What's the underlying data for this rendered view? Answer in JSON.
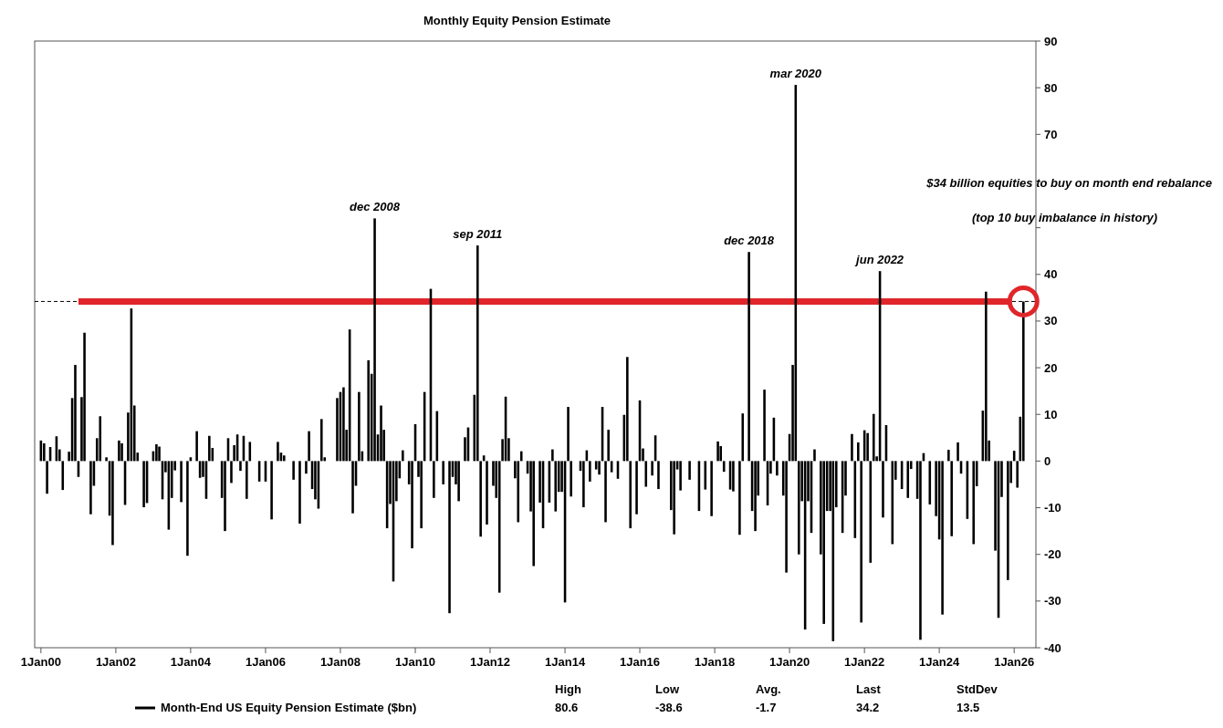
{
  "chart_data": {
    "type": "bar",
    "title": "Monthly Equity Pension Estimate",
    "x": [
      "2000-01",
      "2000-02",
      "2000-03",
      "2000-04",
      "2000-06",
      "2000-07",
      "2000-08",
      "2000-10",
      "2000-11",
      "2000-12",
      "2001-01",
      "2001-02",
      "2001-03",
      "2001-05",
      "2001-06",
      "2001-07",
      "2001-08",
      "2001-10",
      "2001-11",
      "2001-12",
      "2002-02",
      "2002-03",
      "2002-04",
      "2002-05",
      "2002-06",
      "2002-07",
      "2002-08",
      "2002-10",
      "2002-11",
      "2003-01",
      "2003-02",
      "2003-03",
      "2003-04",
      "2003-05",
      "2003-06",
      "2003-07",
      "2003-08",
      "2003-10",
      "2003-12",
      "2004-01",
      "2004-03",
      "2004-04",
      "2004-05",
      "2004-06",
      "2004-07",
      "2004-08",
      "2004-11",
      "2004-12",
      "2005-01",
      "2005-02",
      "2005-03",
      "2005-04",
      "2005-05",
      "2005-06",
      "2005-07",
      "2005-08",
      "2005-11",
      "2006-01",
      "2006-03",
      "2006-05",
      "2006-06",
      "2006-07",
      "2006-10",
      "2006-12",
      "2007-02",
      "2007-03",
      "2007-04",
      "2007-05",
      "2007-06",
      "2007-07",
      "2007-08",
      "2007-12",
      "2008-01",
      "2008-02",
      "2008-03",
      "2008-04",
      "2008-05",
      "2008-06",
      "2008-07",
      "2008-08",
      "2008-10",
      "2008-11",
      "2008-12",
      "2009-01",
      "2009-02",
      "2009-03",
      "2009-04",
      "2009-05",
      "2009-06",
      "2009-07",
      "2009-08",
      "2009-09",
      "2009-11",
      "2009-12",
      "2010-01",
      "2010-02",
      "2010-03",
      "2010-04",
      "2010-06",
      "2010-07",
      "2010-08",
      "2010-10",
      "2010-12",
      "2011-01",
      "2011-02",
      "2011-03",
      "2011-05",
      "2011-06",
      "2011-08",
      "2011-09",
      "2011-10",
      "2011-11",
      "2011-12",
      "2012-02",
      "2012-03",
      "2012-04",
      "2012-05",
      "2012-06",
      "2012-07",
      "2012-09",
      "2012-10",
      "2012-11",
      "2013-01",
      "2013-02",
      "2013-03",
      "2013-05",
      "2013-06",
      "2013-08",
      "2013-09",
      "2013-10",
      "2013-11",
      "2013-12",
      "2014-01",
      "2014-02",
      "2014-03",
      "2014-06",
      "2014-07",
      "2014-08",
      "2014-09",
      "2014-11",
      "2014-12",
      "2015-01",
      "2015-02",
      "2015-03",
      "2015-04",
      "2015-06",
      "2015-08",
      "2015-09",
      "2015-10",
      "2015-12",
      "2016-01",
      "2016-02",
      "2016-03",
      "2016-05",
      "2016-06",
      "2016-07",
      "2016-11",
      "2016-12",
      "2017-01",
      "2017-02",
      "2017-05",
      "2017-08",
      "2017-10",
      "2017-12",
      "2018-02",
      "2018-03",
      "2018-04",
      "2018-06",
      "2018-07",
      "2018-09",
      "2018-10",
      "2018-12",
      "2019-01",
      "2019-02",
      "2019-03",
      "2019-05",
      "2019-06",
      "2019-07",
      "2019-08",
      "2019-09",
      "2019-11",
      "2019-12",
      "2020-01",
      "2020-02",
      "2020-03",
      "2020-04",
      "2020-05",
      "2020-06",
      "2020-07",
      "2020-08",
      "2020-09",
      "2020-11",
      "2020-12",
      "2021-01",
      "2021-02",
      "2021-03",
      "2021-04",
      "2021-06",
      "2021-07",
      "2021-09",
      "2021-10",
      "2021-11",
      "2021-12",
      "2022-01",
      "2022-02",
      "2022-03",
      "2022-04",
      "2022-05",
      "2022-06",
      "2022-07",
      "2022-08",
      "2022-10",
      "2022-11",
      "2023-01",
      "2023-03",
      "2023-04",
      "2023-06",
      "2023-07",
      "2023-08",
      "2023-10",
      "2023-12",
      "2024-01",
      "2024-02",
      "2024-04",
      "2024-05",
      "2024-07",
      "2024-08",
      "2024-10",
      "2024-12",
      "2025-01",
      "2025-03",
      "2025-04",
      "2025-05",
      "2025-07",
      "2025-08",
      "2025-09",
      "2025-11",
      "2025-12",
      "2026-01",
      "2026-02",
      "2026-03",
      "2026-04"
    ],
    "series": [
      {
        "name": "Month-End US Equity Pension Estimate ($bn)",
        "color": "#000000",
        "values": [
          4.4,
          3.8,
          -7,
          3,
          5.3,
          2.5,
          -6.2,
          2,
          13.5,
          20.6,
          -3.4,
          13.7,
          27.5,
          -11.4,
          -5.3,
          4.9,
          9.6,
          0.8,
          -11.7,
          -18,
          4.4,
          3.8,
          -9.4,
          10.4,
          32.7,
          11.9,
          1.8,
          -9.9,
          -9,
          2.1,
          3.6,
          3.1,
          -8.2,
          -2.4,
          -14.7,
          -7.9,
          -2,
          -8.8,
          -20.3,
          0.8,
          6.4,
          -3.6,
          -3.4,
          -8.1,
          5.4,
          2.8,
          -7.9,
          -15,
          4.9,
          -4.7,
          3.4,
          5.7,
          -2.1,
          5.4,
          -8.1,
          4.1,
          -4.4,
          -4.4,
          -12.5,
          4.1,
          1.8,
          1.2,
          -4,
          -13.4,
          -2.7,
          6.4,
          -6,
          -8.2,
          -10.2,
          9,
          0.8,
          13.5,
          14.8,
          15.8,
          6.7,
          28.2,
          -11.2,
          -5.3,
          14.8,
          2.1,
          21.6,
          18.7,
          52,
          5.7,
          11.9,
          6.7,
          -14.4,
          -9.2,
          -25.8,
          -8.6,
          -3.7,
          2.3,
          -5,
          -18.7,
          7.9,
          -3.4,
          -14.4,
          14.8,
          36.9,
          -7.9,
          10.7,
          -5,
          -32.6,
          -3.4,
          -5,
          -8.6,
          5.1,
          7.2,
          14.2,
          46.2,
          -16.2,
          1.2,
          -13.6,
          -5.3,
          -7.9,
          -28.2,
          4.7,
          13.8,
          4.9,
          -3.7,
          -13.1,
          2.1,
          -2.7,
          -10.8,
          -22.5,
          -8.9,
          -14.4,
          -8.9,
          2.5,
          -10.8,
          -6.6,
          -6.6,
          -30.3,
          11.6,
          -7.6,
          -2.1,
          -9.9,
          2.3,
          -4.4,
          -1.8,
          -2.9,
          11.6,
          -13.1,
          6.7,
          -2.4,
          -3.8,
          9.9,
          22.3,
          -14.4,
          -11.4,
          13,
          2.7,
          -5.5,
          -3.1,
          5.5,
          -6,
          -10.5,
          -15.7,
          -1.8,
          -6.3,
          -4,
          -10.7,
          -6.1,
          -11.8,
          4.2,
          3.2,
          -2.3,
          -6.1,
          -6.5,
          -15.8,
          10.2,
          44.8,
          -10.7,
          -15,
          -7.4,
          15.3,
          -9.5,
          -2.7,
          9.3,
          -3.1,
          -7.4,
          -23.9,
          5.8,
          20.6,
          80.6,
          -20,
          -8.6,
          -36.1,
          -8.6,
          -15.4,
          2.5,
          -20,
          -34.9,
          -10.7,
          -10.7,
          -38.6,
          -9.9,
          -15.4,
          -7.4,
          5.8,
          -16.5,
          4,
          -34.6,
          6.6,
          6,
          -21.8,
          10.1,
          1,
          40.7,
          -12.1,
          7.7,
          -17.8,
          -4,
          -6,
          -7.9,
          -1.7,
          -8.1,
          -38.3,
          1.7,
          -9.3,
          -11.8,
          -16.8,
          -32.9,
          2.4,
          -16.1,
          4,
          -2.7,
          -12.4,
          -17.8,
          -5.4,
          10.8,
          36.3,
          4.4,
          -19.2,
          -33.6,
          -7.7,
          -25.5,
          -4.7,
          2.2,
          -5.7,
          9.5,
          34.2
        ]
      }
    ],
    "xlim": [
      "1999-11",
      "2026-08"
    ],
    "xticks": [
      {
        "value": "2000-01",
        "label": "1Jan00"
      },
      {
        "value": "2002-01",
        "label": "1Jan02"
      },
      {
        "value": "2004-01",
        "label": "1Jan04"
      },
      {
        "value": "2006-01",
        "label": "1Jan06"
      },
      {
        "value": "2008-01",
        "label": "1Jan08"
      },
      {
        "value": "2010-01",
        "label": "1Jan10"
      },
      {
        "value": "2012-01",
        "label": "1Jan12"
      },
      {
        "value": "2014-01",
        "label": "1Jan14"
      },
      {
        "value": "2016-01",
        "label": "1Jan16"
      },
      {
        "value": "2018-01",
        "label": "1Jan18"
      },
      {
        "value": "2020-01",
        "label": "1Jan20"
      },
      {
        "value": "2022-01",
        "label": "1Jan22"
      },
      {
        "value": "2024-01",
        "label": "1Jan24"
      },
      {
        "value": "2026-01",
        "label": "1Jan26"
      }
    ],
    "ylim": [
      -40,
      90
    ],
    "yticks": [
      -40,
      -30,
      -20,
      -10,
      0,
      10,
      20,
      30,
      40,
      {
        "value": 50,
        "label": null
      },
      {
        "value": 60,
        "label": null
      },
      70,
      80,
      90
    ],
    "ref_lines": [
      {
        "axis": "y",
        "value": 34.2,
        "color": "#000000",
        "line_style": "dashed"
      },
      {
        "axis": "y",
        "value": 34.2,
        "color": "#e0262b",
        "line_style": "solid"
      }
    ],
    "legend": "bottom",
    "annotations": [
      {
        "text": "dec 2008",
        "x": "2008-12",
        "y": 52
      },
      {
        "text": "sep 2011",
        "x": "2011-09",
        "y": 46.2
      },
      {
        "text": "dec 2018",
        "x": "2018-12",
        "y": 44.8
      },
      {
        "text": "mar 2020",
        "x": "2020-03",
        "y": 80.6
      },
      {
        "text": "jun 2022",
        "x": "2022-06",
        "y": 40.7
      },
      "$34 billion equities to buy on month end rebalance",
      "(top 10 buy imbalance in history)",
      "High",
      "Low",
      "Avg.",
      "Last",
      "StdDev",
      "80.6",
      "-38.6",
      "-1.7",
      "34.2",
      "13.5"
    ]
  }
}
